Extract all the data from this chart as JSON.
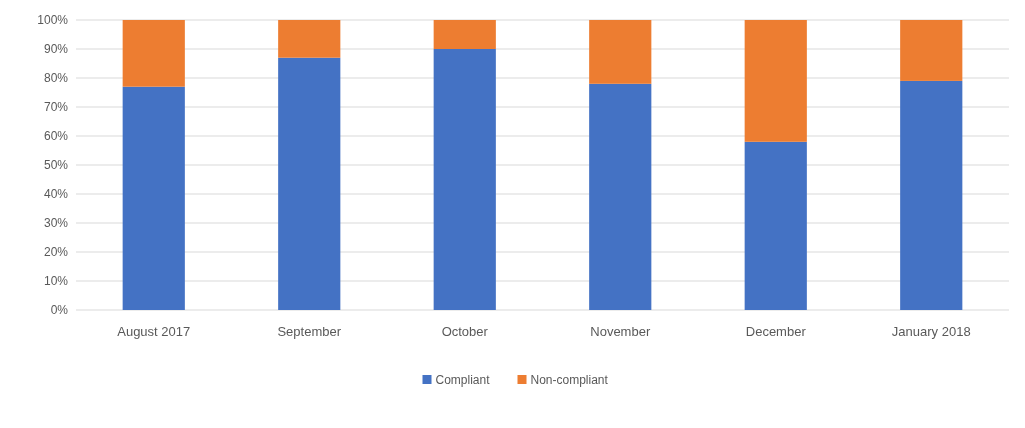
{
  "chart_data": {
    "type": "bar",
    "stacked": true,
    "categories": [
      "August 2017",
      "September",
      "October",
      "November",
      "December",
      "January 2018"
    ],
    "series": [
      {
        "name": "Compliant",
        "color": "#4472c4",
        "values": [
          77,
          87,
          90,
          78,
          58,
          79
        ]
      },
      {
        "name": "Non-compliant",
        "color": "#ed7d31",
        "values": [
          23,
          13,
          10,
          22,
          42,
          21
        ]
      }
    ],
    "ylim": [
      0,
      100
    ],
    "yticks": [
      {
        "value": 0,
        "label": "0%"
      },
      {
        "value": 10,
        "label": "10%"
      },
      {
        "value": 20,
        "label": "20%"
      },
      {
        "value": 30,
        "label": "30%"
      },
      {
        "value": 40,
        "label": "40%"
      },
      {
        "value": 50,
        "label": "50%"
      },
      {
        "value": 60,
        "label": "60%"
      },
      {
        "value": 70,
        "label": "70%"
      },
      {
        "value": 80,
        "label": "80%"
      },
      {
        "value": 90,
        "label": "90%"
      },
      {
        "value": 100,
        "label": "100%"
      }
    ],
    "grid": "y",
    "legend": "bottom"
  }
}
